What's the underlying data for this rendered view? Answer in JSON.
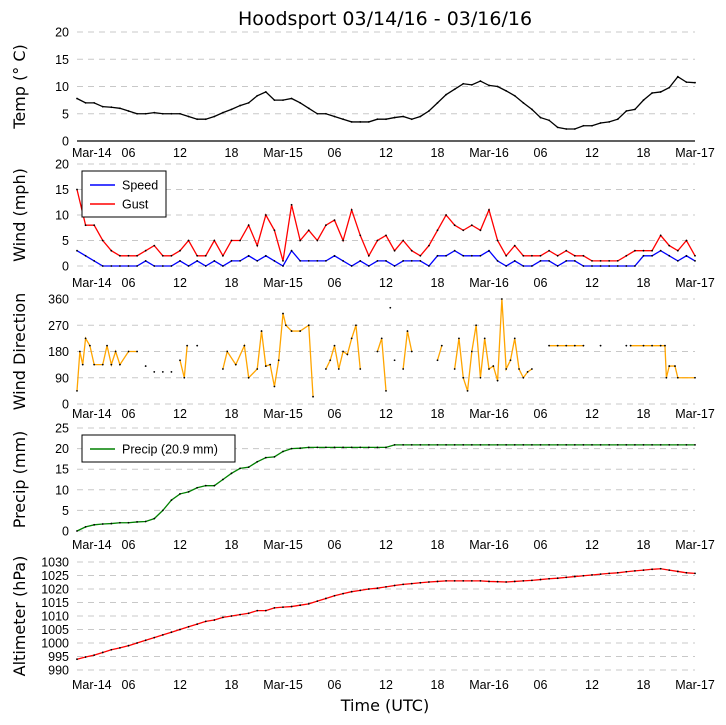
{
  "chart_data": [
    {
      "type": "line",
      "title": "Hoodsport 03/14/16 - 03/16/16",
      "ylabel": "Temp (° C)",
      "xlabel": "",
      "ylim": [
        0,
        20
      ],
      "yticks": [
        "0",
        "5",
        "10",
        "15",
        "20"
      ],
      "xticks": [
        "Mar-14",
        "06",
        "12",
        "18",
        "Mar-15",
        "06",
        "12",
        "18",
        "Mar-16",
        "06",
        "12",
        "18",
        "Mar-17"
      ],
      "grid": true,
      "series": [
        {
          "color": "#000000",
          "values": [
            7.8,
            7,
            7,
            6.3,
            6.2,
            6,
            5.5,
            5,
            5,
            5.2,
            5,
            5,
            5,
            4.5,
            4,
            4,
            4.5,
            5.2,
            5.8,
            6.5,
            7,
            8.3,
            9,
            7.5,
            7.5,
            7.8,
            7,
            6,
            5,
            5,
            4.5,
            4,
            3.5,
            3.5,
            3.5,
            4,
            4,
            4.3,
            4.5,
            4,
            4.5,
            5.5,
            7,
            8.5,
            9.5,
            10.5,
            10.3,
            11,
            10.2,
            10,
            9.2,
            8.3,
            7,
            5.8,
            4.3,
            3.8,
            2.5,
            2.2,
            2.2,
            2.8,
            2.8,
            3.3,
            3.5,
            4,
            5.5,
            5.8,
            7.5,
            8.8,
            9,
            9.8,
            11.8,
            10.8,
            10.7
          ]
        }
      ]
    },
    {
      "type": "line",
      "ylabel": "Wind (mph)",
      "ylim": [
        0,
        20
      ],
      "yticks": [
        "0",
        "5",
        "10",
        "15",
        "20"
      ],
      "xticks": [
        "Mar-14",
        "06",
        "12",
        "18",
        "Mar-15",
        "06",
        "12",
        "18",
        "Mar-16",
        "06",
        "12",
        "18",
        "Mar-17"
      ],
      "grid": true,
      "legend": "top-left",
      "series": [
        {
          "name": "Speed",
          "color": "#0000ff",
          "values": [
            3,
            2,
            1,
            0,
            0,
            0,
            0,
            0,
            1,
            0,
            0,
            0,
            1,
            0,
            1,
            0,
            1,
            0,
            1,
            1,
            2,
            1,
            2,
            1,
            0,
            3,
            1,
            1,
            1,
            1,
            2,
            1,
            0,
            1,
            0,
            1,
            1,
            0,
            1,
            1,
            1,
            0,
            2,
            2,
            3,
            2,
            2,
            2,
            3,
            1,
            0,
            1,
            0,
            0,
            1,
            1,
            0,
            1,
            1,
            0,
            0,
            0,
            0,
            0,
            0,
            0,
            2,
            2,
            3,
            2,
            1,
            2,
            1
          ]
        },
        {
          "name": "Gust",
          "color": "#ff0000",
          "values": [
            15,
            8,
            8,
            5,
            3,
            2,
            2,
            2,
            3,
            4,
            2,
            2,
            3,
            5,
            2,
            2,
            5,
            2,
            5,
            5,
            8,
            4,
            10,
            7,
            1,
            12,
            5,
            7,
            5,
            8,
            9,
            5,
            11,
            6,
            2,
            5,
            6,
            3,
            5,
            3,
            2,
            4,
            7,
            10,
            8,
            7,
            8,
            7,
            11,
            5,
            2,
            4,
            2,
            2,
            2,
            3,
            2,
            3,
            2,
            2,
            1,
            1,
            1,
            1,
            2,
            3,
            3,
            3,
            6,
            4,
            3,
            5,
            2
          ]
        }
      ]
    },
    {
      "type": "line",
      "ylabel": "Wind Direction",
      "ylim": [
        0,
        360
      ],
      "yticks": [
        "0",
        "90",
        "180",
        "270",
        "360"
      ],
      "xticks": [
        "Mar-14",
        "06",
        "12",
        "18",
        "Mar-15",
        "06",
        "12",
        "18",
        "Mar-16",
        "06",
        "12",
        "18",
        "Mar-17"
      ],
      "grid": true,
      "color": "#ffa500",
      "segments": [
        [
          [
            "Mar-14 00:00",
            45
          ],
          [
            "Mar-14 00:20",
            180
          ],
          [
            "Mar-14 00:40",
            135
          ],
          [
            "Mar-14 01:00",
            225
          ],
          [
            "Mar-14 01:30",
            200
          ],
          [
            "Mar-14 02:00",
            135
          ],
          [
            "Mar-14 03:00",
            135
          ],
          [
            "Mar-14 03:30",
            200
          ],
          [
            "Mar-14 04:00",
            135
          ],
          [
            "Mar-14 04:30",
            180
          ],
          [
            "Mar-14 05:00",
            135
          ],
          [
            "Mar-14 06:00",
            180
          ],
          [
            "Mar-14 07:00",
            180
          ]
        ],
        [
          [
            "Mar-14 08:00",
            130
          ]
        ],
        [
          [
            "Mar-14 09:00",
            110
          ]
        ],
        [
          [
            "Mar-14 10:00",
            110
          ]
        ],
        [
          [
            "Mar-14 11:00",
            110
          ]
        ],
        [
          [
            "Mar-14 12:00",
            150
          ],
          [
            "Mar-14 12:30",
            90
          ],
          [
            "Mar-14 12:50",
            200
          ]
        ],
        [
          [
            "Mar-14 14:00",
            200
          ]
        ],
        [
          [
            "Mar-14 17:00",
            120
          ],
          [
            "Mar-14 17:30",
            180
          ],
          [
            "Mar-14 18:30",
            135
          ],
          [
            "Mar-14 19:30",
            200
          ],
          [
            "Mar-14 20:00",
            90
          ],
          [
            "Mar-14 21:00",
            120
          ],
          [
            "Mar-14 21:30",
            250
          ],
          [
            "Mar-14 22:00",
            130
          ],
          [
            "Mar-14 22:30",
            135
          ],
          [
            "Mar-14 23:00",
            60
          ],
          [
            "Mar-14 23:30",
            150
          ],
          [
            "Mar-15 00:00",
            310
          ],
          [
            "Mar-15 00:20",
            270
          ],
          [
            "Mar-15 01:00",
            250
          ],
          [
            "Mar-15 02:00",
            250
          ],
          [
            "Mar-15 03:00",
            270
          ],
          [
            "Mar-15 03:30",
            25
          ]
        ],
        [
          [
            "Mar-15 05:00",
            120
          ],
          [
            "Mar-15 05:30",
            150
          ],
          [
            "Mar-15 06:00",
            200
          ],
          [
            "Mar-15 06:30",
            120
          ],
          [
            "Mar-15 07:00",
            180
          ],
          [
            "Mar-15 07:30",
            170
          ],
          [
            "Mar-15 08:00",
            225
          ],
          [
            "Mar-15 08:30",
            270
          ],
          [
            "Mar-15 09:00",
            120
          ]
        ],
        [
          [
            "Mar-15 11:00",
            180
          ],
          [
            "Mar-15 11:30",
            225
          ],
          [
            "Mar-15 12:00",
            45
          ]
        ],
        [
          [
            "Mar-15 12:30",
            330
          ]
        ],
        [
          [
            "Mar-15 13:00",
            150
          ]
        ],
        [
          [
            "Mar-15 14:00",
            120
          ],
          [
            "Mar-15 14:30",
            250
          ],
          [
            "Mar-15 15:00",
            180
          ]
        ],
        [
          [
            "Mar-15 18:00",
            150
          ],
          [
            "Mar-15 18:30",
            200
          ]
        ],
        [
          [
            "Mar-15 20:00",
            120
          ],
          [
            "Mar-15 20:30",
            225
          ],
          [
            "Mar-15 21:00",
            90
          ],
          [
            "Mar-15 21:30",
            45
          ],
          [
            "Mar-15 22:00",
            180
          ],
          [
            "Mar-15 22:30",
            270
          ],
          [
            "Mar-15 23:00",
            90
          ],
          [
            "Mar-15 23:30",
            225
          ],
          [
            "Mar-16 00:00",
            120
          ],
          [
            "Mar-16 00:30",
            130
          ],
          [
            "Mar-16 01:00",
            80
          ],
          [
            "Mar-16 01:30",
            360
          ],
          [
            "Mar-16 02:00",
            120
          ],
          [
            "Mar-16 02:30",
            150
          ],
          [
            "Mar-16 03:00",
            225
          ],
          [
            "Mar-16 03:30",
            120
          ],
          [
            "Mar-16 04:00",
            90
          ],
          [
            "Mar-16 04:30",
            110
          ],
          [
            "Mar-16 05:00",
            120
          ]
        ],
        [
          [
            "Mar-16 07:00",
            200
          ],
          [
            "Mar-16 08:00",
            200
          ],
          [
            "Mar-16 09:00",
            200
          ],
          [
            "Mar-16 10:00",
            200
          ],
          [
            "Mar-16 11:00",
            200
          ]
        ],
        [
          [
            "Mar-16 13:00",
            200
          ]
        ],
        [
          [
            "Mar-16 16:00",
            200
          ]
        ],
        [
          [
            "Mar-16 16:30",
            200
          ],
          [
            "Mar-16 18:00",
            200
          ],
          [
            "Mar-16 19:00",
            200
          ],
          [
            "Mar-16 20:00",
            200
          ],
          [
            "Mar-16 20:30",
            200
          ],
          [
            "Mar-16 20:40",
            90
          ],
          [
            "Mar-16 21:00",
            130
          ],
          [
            "Mar-16 21:40",
            130
          ],
          [
            "Mar-16 22:00",
            90
          ],
          [
            "Mar-17 00:00",
            90
          ]
        ]
      ]
    },
    {
      "type": "line",
      "ylabel": "Precip (mm)",
      "ylim": [
        0,
        25
      ],
      "yticks": [
        "0",
        "5",
        "10",
        "15",
        "20",
        "25"
      ],
      "xticks": [
        "Mar-14",
        "06",
        "12",
        "18",
        "Mar-15",
        "06",
        "12",
        "18",
        "Mar-16",
        "06",
        "12",
        "18",
        "Mar-17"
      ],
      "grid": true,
      "legend": "top-left",
      "series": [
        {
          "name": "Precip (20.9 mm)",
          "color": "#008000",
          "values": [
            0,
            1,
            1.5,
            1.7,
            1.8,
            2,
            2,
            2.2,
            2.3,
            3,
            5,
            7.5,
            9,
            9.5,
            10.5,
            11,
            11,
            12.5,
            14,
            15.2,
            15.5,
            16.8,
            17.8,
            18,
            19.3,
            20,
            20.1,
            20.3,
            20.3,
            20.3,
            20.3,
            20.3,
            20.3,
            20.3,
            20.3,
            20.3,
            20.3,
            20.9,
            20.9,
            20.9,
            20.9,
            20.9,
            20.9,
            20.9,
            20.9,
            20.9,
            20.9,
            20.9,
            20.9,
            20.9,
            20.9,
            20.9,
            20.9,
            20.9,
            20.9,
            20.9,
            20.9,
            20.9,
            20.9,
            20.9,
            20.9,
            20.9,
            20.9,
            20.9,
            20.9,
            20.9,
            20.9,
            20.9,
            20.9,
            20.9,
            20.9,
            20.9,
            20.9
          ]
        }
      ]
    },
    {
      "type": "line",
      "ylabel": "Altimeter (hPa)",
      "xlabel": "Time (UTC)",
      "ylim": [
        990,
        1030
      ],
      "yticks": [
        "990",
        "995",
        "1000",
        "1005",
        "1010",
        "1015",
        "1020",
        "1025",
        "1030"
      ],
      "xticks": [
        "Mar-14",
        "06",
        "12",
        "18",
        "Mar-15",
        "06",
        "12",
        "18",
        "Mar-16",
        "06",
        "12",
        "18",
        "Mar-17"
      ],
      "top_xticks": [
        "Mar-14",
        "06",
        "12",
        "18",
        "Mar-15",
        "06",
        "12",
        "18",
        "Mar-16",
        "06",
        "12",
        "18",
        "Mar-17"
      ],
      "grid": true,
      "series": [
        {
          "color": "#ff0000",
          "values": [
            994,
            994.8,
            995.5,
            996.5,
            997.5,
            998.2,
            999,
            1000,
            1001,
            1002,
            1003,
            1004,
            1005,
            1006,
            1007,
            1008,
            1008.5,
            1009.5,
            1010,
            1010.5,
            1011,
            1012,
            1012,
            1013,
            1013.3,
            1013.5,
            1014,
            1014.5,
            1015.5,
            1016.5,
            1017.5,
            1018.3,
            1019,
            1019.5,
            1020,
            1020.3,
            1020.8,
            1021.3,
            1021.7,
            1022,
            1022.3,
            1022.6,
            1022.8,
            1023,
            1023,
            1023,
            1023,
            1023,
            1022.8,
            1022.7,
            1022.6,
            1022.8,
            1023,
            1023.2,
            1023.5,
            1023.8,
            1024,
            1024.3,
            1024.6,
            1024.9,
            1025.2,
            1025.5,
            1025.8,
            1026,
            1026.4,
            1026.7,
            1027,
            1027.3,
            1027.5,
            1027,
            1026.5,
            1026,
            1025.8
          ]
        }
      ]
    }
  ]
}
